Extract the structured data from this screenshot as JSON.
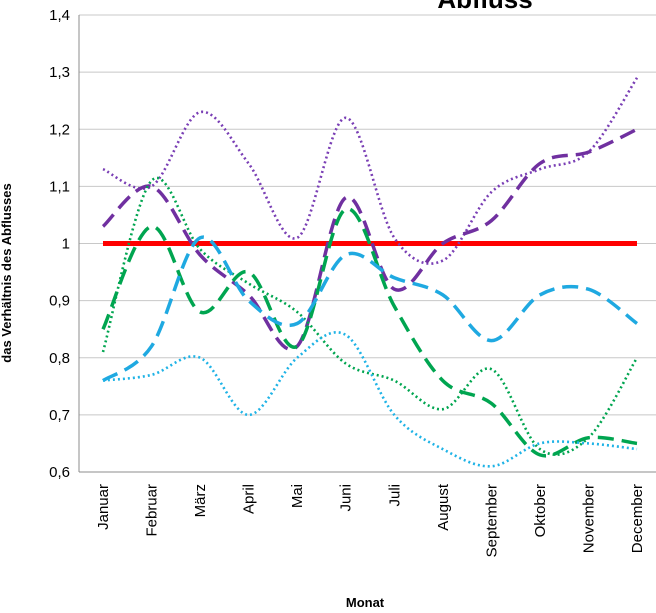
{
  "chart_data": {
    "type": "line",
    "title": "Abfluss",
    "xlabel": "Monat",
    "ylabel": "das Verhältnis des Abflusses",
    "ylim": [
      0.6,
      1.4
    ],
    "y_ticks": [
      "0,6",
      "0,7",
      "0,8",
      "0,9",
      "1",
      "1,1",
      "1,2",
      "1,3",
      "1,4"
    ],
    "grid": "horizontal",
    "legend": "none",
    "categories": [
      "Januar",
      "Februar",
      "März",
      "April",
      "Mai",
      "Juni",
      "Juli",
      "August",
      "September",
      "Oktober",
      "November",
      "December"
    ],
    "series": [
      {
        "color": "#ff0000",
        "style": "solid",
        "values": [
          1.0,
          1.0,
          1.0,
          1.0,
          1.0,
          1.0,
          1.0,
          1.0,
          1.0,
          1.0,
          1.0,
          1.0
        ]
      },
      {
        "color": "#7a3fb5",
        "style": "dotted",
        "values": [
          1.13,
          1.1,
          1.23,
          1.14,
          1.01,
          1.22,
          1.01,
          0.97,
          1.09,
          1.13,
          1.16,
          1.29
        ]
      },
      {
        "color": "#7030a0",
        "style": "dashed",
        "values": [
          1.03,
          1.1,
          0.98,
          0.91,
          0.82,
          1.08,
          0.92,
          1.0,
          1.04,
          1.14,
          1.16,
          1.2
        ]
      },
      {
        "color": "#00a550",
        "style": "dashed",
        "values": [
          0.85,
          1.03,
          0.88,
          0.95,
          0.82,
          1.06,
          0.89,
          0.76,
          0.72,
          0.63,
          0.66,
          0.65
        ]
      },
      {
        "color": "#00a550",
        "style": "dotted",
        "values": [
          0.81,
          1.11,
          0.99,
          0.93,
          0.88,
          0.79,
          0.76,
          0.71,
          0.78,
          0.64,
          0.66,
          0.8
        ]
      },
      {
        "color": "#1fa9e1",
        "style": "dashed",
        "values": [
          0.76,
          0.82,
          1.01,
          0.9,
          0.86,
          0.98,
          0.94,
          0.91,
          0.83,
          0.91,
          0.92,
          0.86
        ]
      },
      {
        "color": "#1fb3e6",
        "style": "dotted",
        "values": [
          0.76,
          0.77,
          0.8,
          0.7,
          0.8,
          0.84,
          0.7,
          0.64,
          0.61,
          0.65,
          0.65,
          0.64
        ]
      }
    ]
  }
}
